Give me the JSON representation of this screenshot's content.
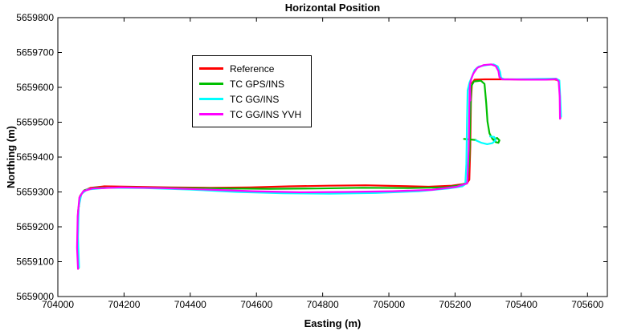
{
  "chart_data": {
    "type": "line",
    "title": "Horizontal Position",
    "xlabel": "Easting (m)",
    "ylabel": "Northing (m)",
    "xlim": [
      704000,
      705660
    ],
    "ylim": [
      5659000,
      5659800
    ],
    "xticks": [
      704000,
      704200,
      704400,
      704600,
      704800,
      705000,
      705200,
      705400,
      705600
    ],
    "yticks": [
      5659000,
      5659100,
      5659200,
      5659300,
      5659400,
      5659500,
      5659600,
      5659700,
      5659800
    ],
    "grid": false,
    "legend_position": "upper-left-inside",
    "line_width": 2.2,
    "series": [
      {
        "name": "Reference",
        "color": "#ff0000",
        "points": [
          [
            704062,
            5659082
          ],
          [
            704059,
            5659150
          ],
          [
            704061,
            5659240
          ],
          [
            704067,
            5659288
          ],
          [
            704079,
            5659304
          ],
          [
            704100,
            5659312
          ],
          [
            704140,
            5659316
          ],
          [
            704220,
            5659315
          ],
          [
            704340,
            5659313
          ],
          [
            704460,
            5659312
          ],
          [
            704580,
            5659313
          ],
          [
            704700,
            5659316
          ],
          [
            704820,
            5659318
          ],
          [
            704930,
            5659319
          ],
          [
            705030,
            5659317
          ],
          [
            705120,
            5659315
          ],
          [
            705190,
            5659318
          ],
          [
            705235,
            5659324
          ],
          [
            705243,
            5659335
          ],
          [
            705246,
            5659430
          ],
          [
            705248,
            5659560
          ],
          [
            705251,
            5659612
          ],
          [
            705259,
            5659622
          ],
          [
            705290,
            5659623
          ],
          [
            705360,
            5659623
          ],
          [
            705430,
            5659622
          ],
          [
            705500,
            5659623
          ],
          [
            705514,
            5659620
          ],
          [
            705517,
            5659570
          ],
          [
            705518,
            5659512
          ]
        ]
      },
      {
        "name": "TC GPS/INS",
        "color": "#00bf00",
        "points": [
          [
            704063,
            5659082
          ],
          [
            704060,
            5659160
          ],
          [
            704062,
            5659250
          ],
          [
            704069,
            5659291
          ],
          [
            704081,
            5659305
          ],
          [
            704112,
            5659312
          ],
          [
            704220,
            5659313
          ],
          [
            704360,
            5659311
          ],
          [
            704500,
            5659310
          ],
          [
            704640,
            5659309
          ],
          [
            704780,
            5659310
          ],
          [
            704920,
            5659312
          ],
          [
            705060,
            5659311
          ],
          [
            705170,
            5659313
          ],
          [
            705215,
            5659319
          ],
          [
            705237,
            5659327
          ],
          [
            705243,
            5659390
          ],
          [
            705246,
            5659520
          ],
          [
            705249,
            5659603
          ],
          [
            705257,
            5659617
          ],
          [
            705278,
            5659619
          ],
          [
            705289,
            5659610
          ],
          [
            705294,
            5659556
          ],
          [
            705298,
            5659502
          ],
          [
            705304,
            5659468
          ],
          [
            705313,
            5659452
          ],
          [
            705323,
            5659443
          ],
          [
            705331,
            5659441
          ],
          [
            705334,
            5659448
          ],
          [
            705327,
            5659455
          ],
          [
            705315,
            5659450
          ],
          null,
          [
            705227,
            5659452
          ],
          [
            705263,
            5659449
          ]
        ]
      },
      {
        "name": "TC GG/INS",
        "color": "#00ffff",
        "points": [
          [
            704064,
            5659084
          ],
          [
            704061,
            5659170
          ],
          [
            704063,
            5659258
          ],
          [
            704071,
            5659294
          ],
          [
            704088,
            5659307
          ],
          [
            704150,
            5659312
          ],
          [
            704260,
            5659311
          ],
          [
            704400,
            5659307
          ],
          [
            704540,
            5659300
          ],
          [
            704680,
            5659296
          ],
          [
            704820,
            5659295
          ],
          [
            704960,
            5659297
          ],
          [
            705090,
            5659302
          ],
          [
            705180,
            5659310
          ],
          [
            705222,
            5659316
          ],
          [
            705231,
            5659322
          ],
          [
            705234,
            5659380
          ],
          [
            705236,
            5659500
          ],
          [
            705238,
            5659592
          ],
          [
            705244,
            5659615
          ],
          [
            705251,
            5659631
          ],
          [
            705259,
            5659650
          ],
          [
            705272,
            5659660
          ],
          [
            705296,
            5659664
          ],
          [
            705316,
            5659666
          ],
          [
            705329,
            5659660
          ],
          [
            705336,
            5659644
          ],
          [
            705339,
            5659627
          ],
          [
            705350,
            5659623
          ],
          [
            705430,
            5659624
          ],
          [
            705505,
            5659625
          ],
          [
            705515,
            5659620
          ],
          [
            705518,
            5659564
          ],
          [
            705520,
            5659516
          ],
          null,
          [
            705263,
            5659448
          ],
          [
            705280,
            5659441
          ],
          [
            705297,
            5659437
          ],
          [
            705313,
            5659440
          ],
          [
            705323,
            5659449
          ],
          [
            705318,
            5659458
          ],
          [
            705306,
            5659459
          ]
        ]
      },
      {
        "name": "TC GG/INS YVH",
        "color": "#ff00ff",
        "points": [
          [
            704061,
            5659079
          ],
          [
            704058,
            5659140
          ],
          [
            704060,
            5659230
          ],
          [
            704065,
            5659284
          ],
          [
            704077,
            5659302
          ],
          [
            704104,
            5659310
          ],
          [
            704190,
            5659313
          ],
          [
            704310,
            5659311
          ],
          [
            704450,
            5659307
          ],
          [
            704590,
            5659302
          ],
          [
            704730,
            5659299
          ],
          [
            704870,
            5659300
          ],
          [
            705010,
            5659302
          ],
          [
            705130,
            5659306
          ],
          [
            705205,
            5659315
          ],
          [
            705237,
            5659325
          ],
          [
            705241,
            5659420
          ],
          [
            705243,
            5659535
          ],
          [
            705244,
            5659598
          ],
          [
            705246,
            5659562
          ],
          [
            705245,
            5659608
          ],
          [
            705249,
            5659624
          ],
          [
            705255,
            5659639
          ],
          [
            705267,
            5659656
          ],
          [
            705286,
            5659664
          ],
          [
            705309,
            5659666
          ],
          [
            705323,
            5659661
          ],
          [
            705331,
            5659647
          ],
          [
            705334,
            5659629
          ],
          [
            705342,
            5659623
          ],
          [
            705420,
            5659622
          ],
          [
            705475,
            5659622
          ],
          [
            705506,
            5659624
          ],
          [
            705513,
            5659617
          ],
          [
            705516,
            5659574
          ],
          [
            705517,
            5659510
          ]
        ]
      }
    ]
  }
}
